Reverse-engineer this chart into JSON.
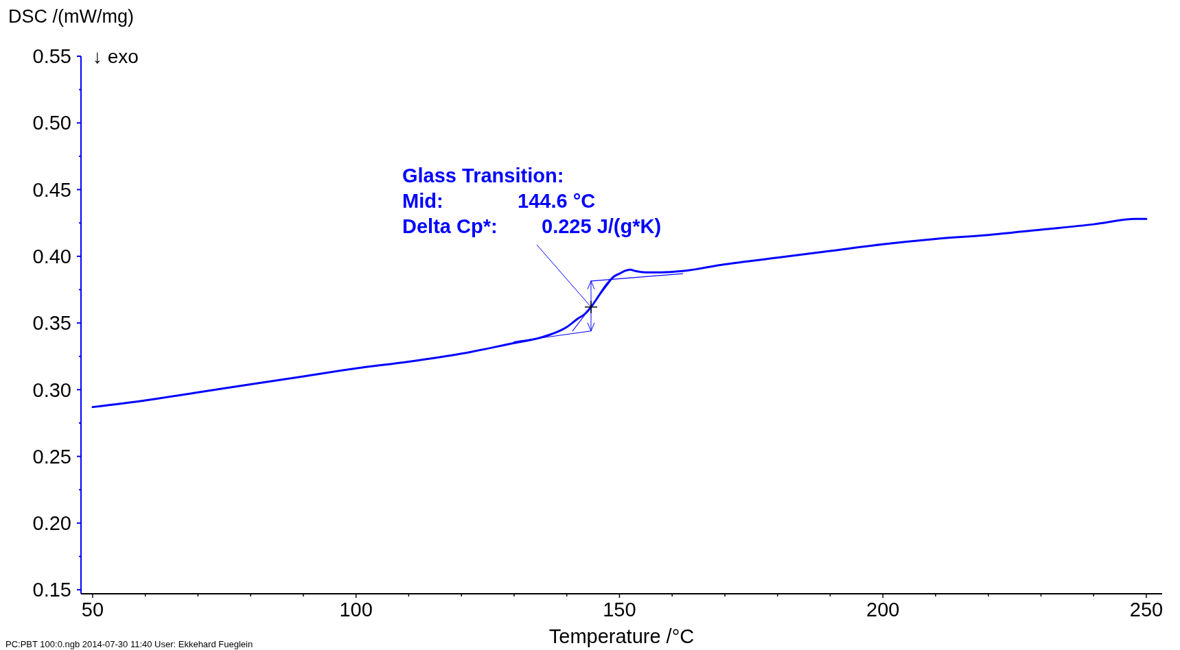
{
  "chart_data": {
    "type": "line",
    "xlabel": "Temperature /°C",
    "ylabel": "DSC /(mW/mg)",
    "xlim": [
      47.8,
      253
    ],
    "ylim": [
      0.147,
      0.55
    ],
    "xticks": [
      50,
      {
        "value": 60,
        "label": null
      },
      {
        "value": 70,
        "label": null
      },
      {
        "value": 80,
        "label": null
      },
      {
        "value": 90,
        "label": null
      },
      100,
      {
        "value": 110,
        "label": null
      },
      {
        "value": 120,
        "label": null
      },
      {
        "value": 130,
        "label": null
      },
      {
        "value": 140,
        "label": null
      },
      150,
      {
        "value": 160,
        "label": null
      },
      {
        "value": 170,
        "label": null
      },
      {
        "value": 180,
        "label": null
      },
      {
        "value": 190,
        "label": null
      },
      200,
      {
        "value": 210,
        "label": null
      },
      {
        "value": 220,
        "label": null
      },
      {
        "value": 230,
        "label": null
      },
      {
        "value": 240,
        "label": null
      },
      250
    ],
    "yticks": [
      {
        "value": 0.15,
        "label": "0.15"
      },
      {
        "value": 0.175,
        "label": null
      },
      {
        "value": 0.2,
        "label": "0.20"
      },
      {
        "value": 0.225,
        "label": null
      },
      {
        "value": 0.25,
        "label": "0.25"
      },
      {
        "value": 0.275,
        "label": null
      },
      {
        "value": 0.3,
        "label": "0.30"
      },
      {
        "value": 0.325,
        "label": null
      },
      {
        "value": 0.35,
        "label": "0.35"
      },
      {
        "value": 0.375,
        "label": null
      },
      {
        "value": 0.4,
        "label": "0.40"
      },
      {
        "value": 0.425,
        "label": null
      },
      {
        "value": 0.45,
        "label": "0.45"
      },
      {
        "value": 0.475,
        "label": null
      },
      {
        "value": 0.5,
        "label": "0.50"
      },
      {
        "value": 0.525,
        "label": null
      },
      {
        "value": 0.55,
        "label": "0.55"
      }
    ],
    "grid": false,
    "marker": "none",
    "line_style": "solid",
    "series": [
      {
        "color": "#0000ff",
        "x": [
          50,
          60,
          70,
          80,
          90,
          100,
          110,
          120,
          130,
          135,
          138,
          140,
          142,
          143.5,
          144.6,
          146,
          147,
          148,
          149,
          150,
          151,
          152,
          153,
          155,
          158,
          162,
          170,
          180,
          190,
          200,
          210,
          220,
          230,
          240,
          248,
          250
        ],
        "values": [
          0.287,
          0.292,
          0.298,
          0.304,
          0.31,
          0.316,
          0.321,
          0.327,
          0.335,
          0.339,
          0.343,
          0.347,
          0.353,
          0.357,
          0.362,
          0.37,
          0.376,
          0.381,
          0.385,
          0.387,
          0.389,
          0.39,
          0.389,
          0.388,
          0.388,
          0.389,
          0.394,
          0.399,
          0.404,
          0.409,
          0.413,
          0.416,
          0.42,
          0.424,
          0.428,
          0.428
        ]
      },
      {
        "color": "#0000ff",
        "x": [
          130,
          144.6
        ],
        "values": [
          0.336,
          0.344
        ]
      },
      {
        "color": "#0000ff",
        "x": [
          144.6,
          162
        ],
        "values": [
          0.3815,
          0.387
        ]
      },
      {
        "color": "#0000ff",
        "x": [
          141.1,
          148.3
        ],
        "values": [
          0.344,
          0.3815
        ]
      }
    ],
    "annotations": [
      "Glass Transition:",
      "Mid:",
      "144.6 °C",
      "Delta Cp*:",
      {
        "text": "0.225 J/(g*K)",
        "x": 144.6,
        "y": 0.362
      },
      "↓ exo",
      "PC:PBT 100:0.ngb    2014-07-30 11:40    User: Ekkehard Fueglein"
    ]
  }
}
